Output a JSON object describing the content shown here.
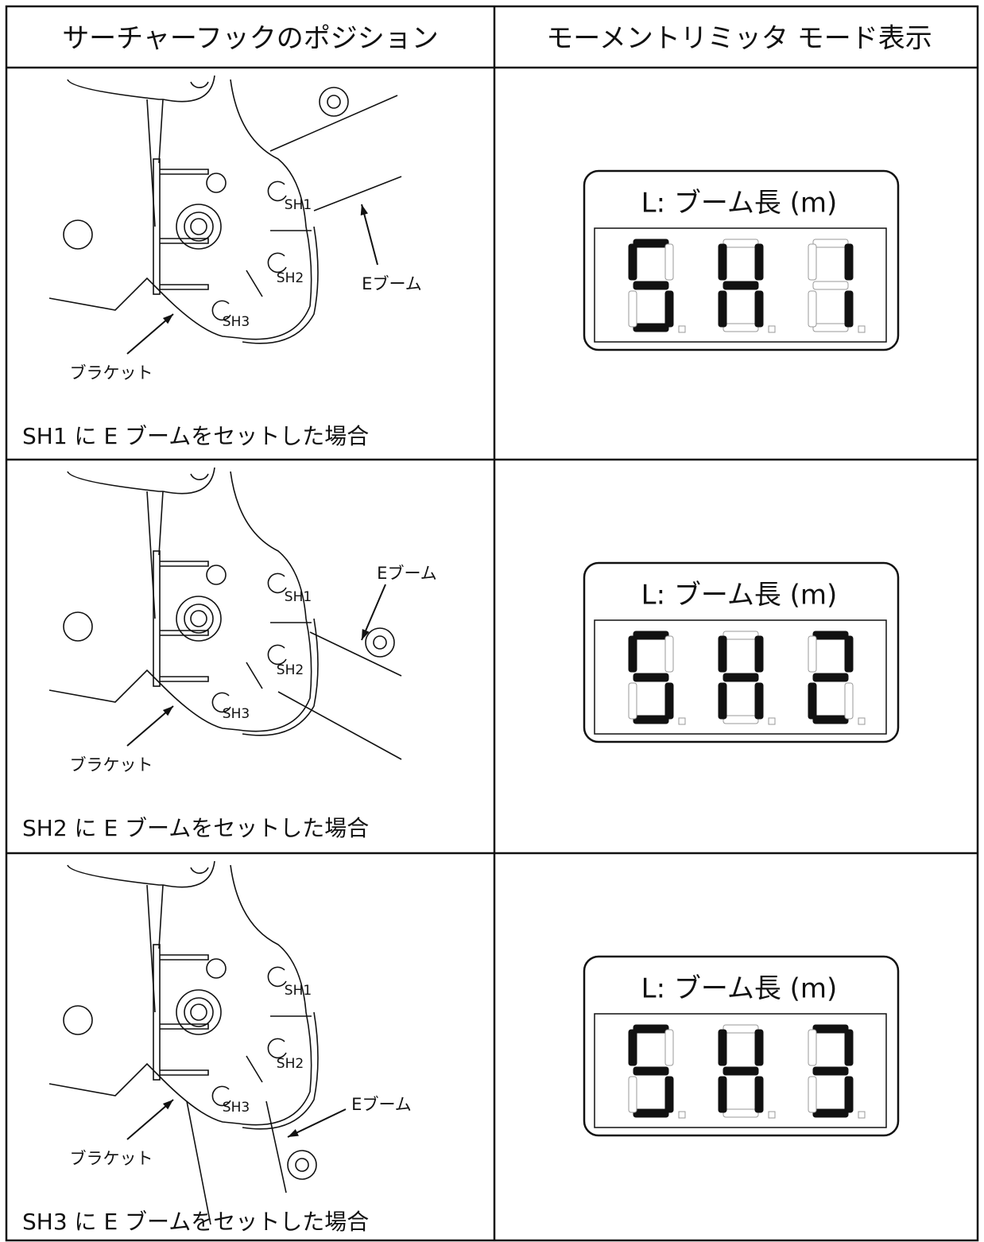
{
  "header": {
    "left": "サーチャーフックのポジション",
    "right": "モーメントリミッタ モード表示"
  },
  "rows": [
    {
      "sh_labels": [
        "SH1",
        "SH2",
        "SH3"
      ],
      "boom_label": "Eブーム",
      "bracket_label": "ブラケット",
      "caption": "SH1 に E ブームをセットした場合",
      "display_label": "L: ブーム長 (m)",
      "display_value": "SH1"
    },
    {
      "sh_labels": [
        "SH1",
        "SH2",
        "SH3"
      ],
      "boom_label": "Eブーム",
      "bracket_label": "ブラケット",
      "caption": "SH2 に E ブームをセットした場合",
      "display_label": "L: ブーム長 (m)",
      "display_value": "SH2"
    },
    {
      "sh_labels": [
        "SH1",
        "SH2",
        "SH3"
      ],
      "boom_label": "Eブーム",
      "bracket_label": "ブラケット",
      "caption": "SH3 に E ブームをセットした場合",
      "display_label": "L: ブーム長 (m)",
      "display_value": "SH3"
    }
  ]
}
